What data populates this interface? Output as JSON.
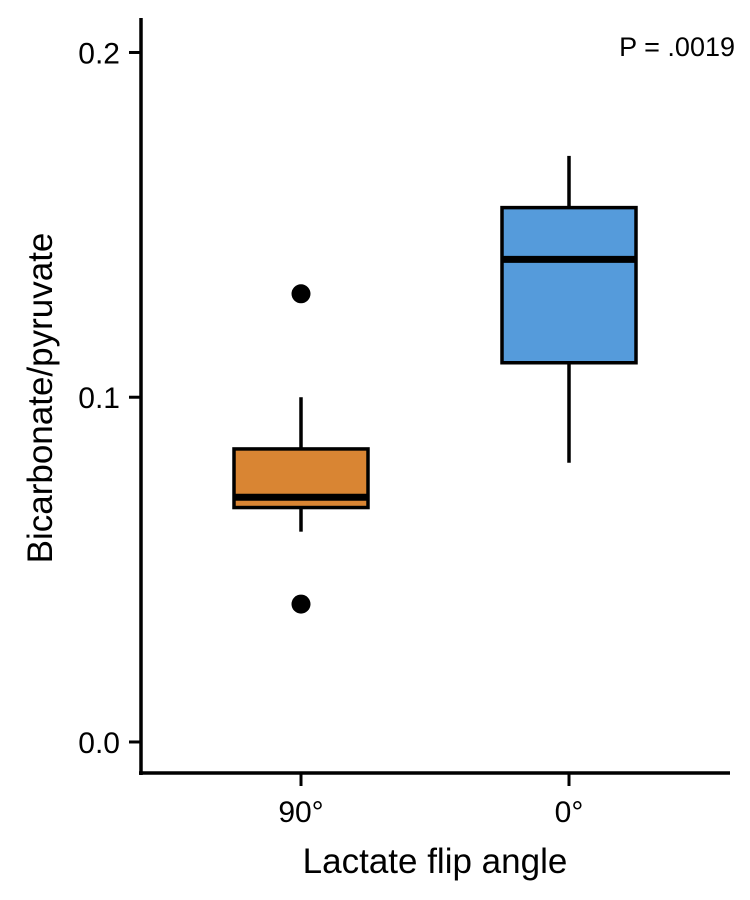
{
  "chart_data": {
    "type": "box",
    "xlabel": "Lactate flip angle",
    "ylabel": "Bicarbonate/pyruvate",
    "ylim": [
      -0.009,
      0.21
    ],
    "yticks": [
      0.0,
      0.1,
      0.2
    ],
    "ytick_labels": [
      "0.0",
      "0.1",
      "0.2"
    ],
    "categories": [
      "90°",
      "0°"
    ],
    "grid": false,
    "legend": "none",
    "annotation": "P = .0019",
    "boxes": [
      {
        "category": "90°",
        "color": "#D98533",
        "whisker_low": 0.061,
        "q1": 0.068,
        "median": 0.071,
        "q3": 0.085,
        "whisker_high": 0.1,
        "outliers": [
          0.13,
          0.04
        ]
      },
      {
        "category": "0°",
        "color": "#559BDB",
        "whisker_low": 0.081,
        "q1": 0.11,
        "median": 0.14,
        "q3": 0.155,
        "whisker_high": 0.17,
        "outliers": []
      }
    ]
  }
}
